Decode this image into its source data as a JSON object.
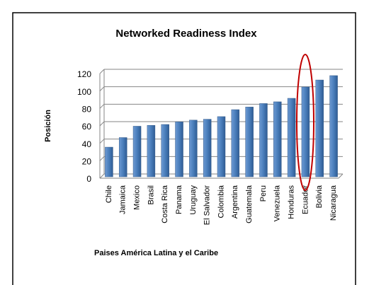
{
  "chart_data": {
    "type": "bar",
    "title": "Networked Readiness Index",
    "y_label": "Posición",
    "x_label": "Paises América Latina y el Caribe",
    "categories": [
      "Chile",
      "Jamaica",
      "Mexico",
      "Brasil",
      "Costa Rica",
      "Panama",
      "Uruguay",
      "El Salvador",
      "Colombia",
      "Argentina",
      "Guatemala",
      "Peru",
      "Venezuela",
      "Honduras",
      "Ecuador",
      "Bolivia",
      "Nicaragua"
    ],
    "values": [
      34,
      45,
      58,
      59,
      60,
      63,
      65,
      66,
      69,
      77,
      80,
      84,
      86,
      90,
      103,
      111,
      116
    ],
    "color": "#4a7ebb",
    "ylim": [
      0,
      120
    ],
    "yticks": [
      0,
      20,
      40,
      60,
      80,
      100,
      120
    ],
    "grid": true
  }
}
